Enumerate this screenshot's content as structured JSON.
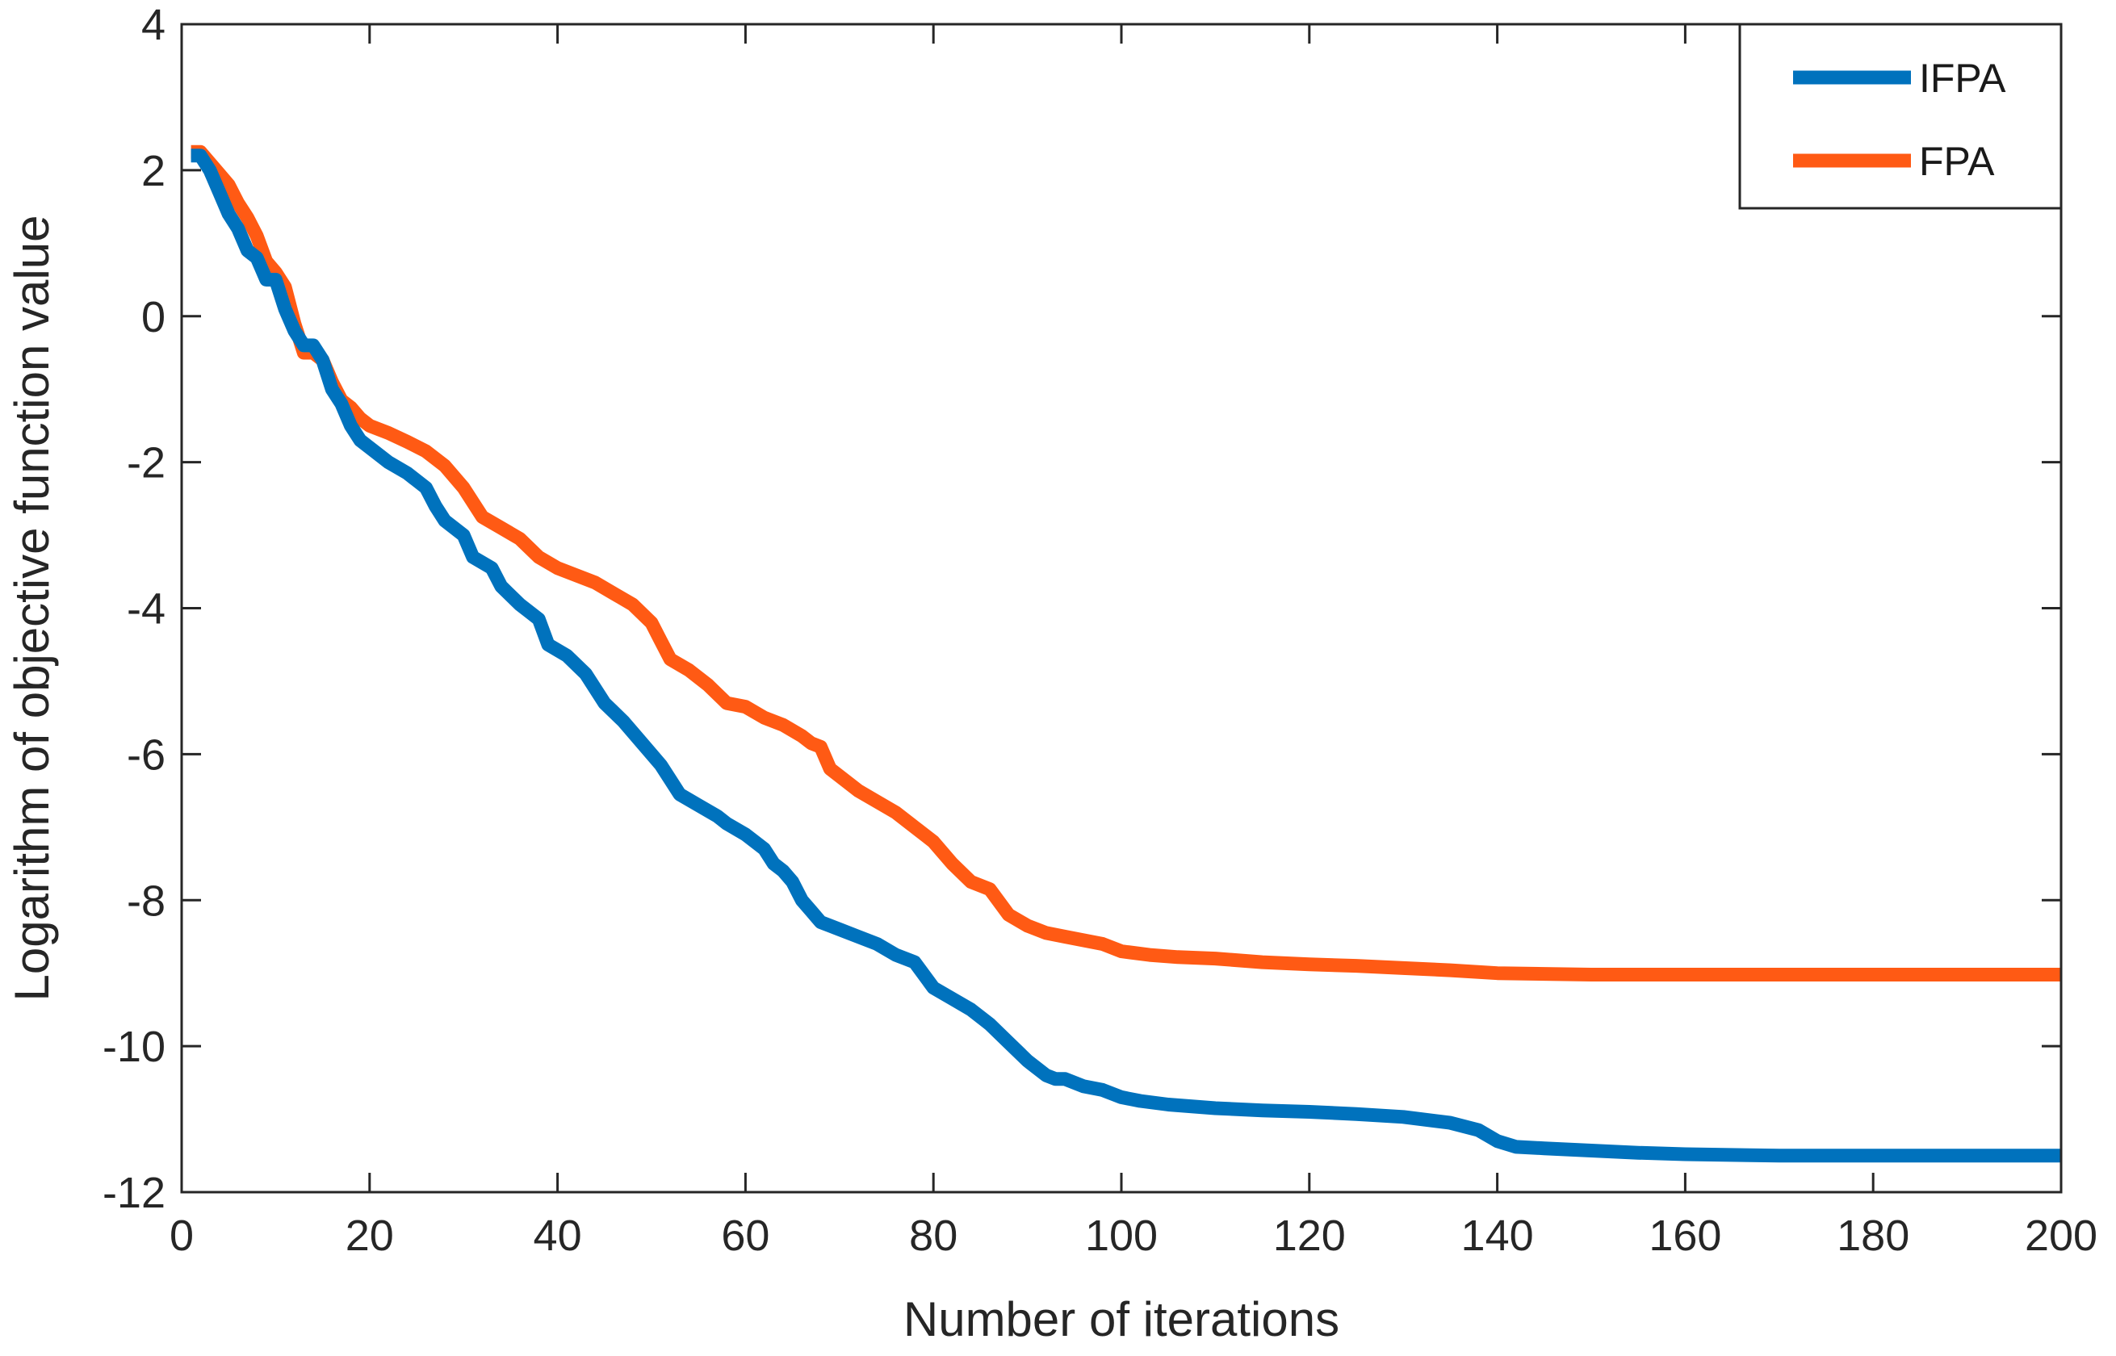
{
  "chart_data": {
    "type": "line",
    "title": "",
    "xlabel": "Number of iterations",
    "ylabel": "Logarithm of objective function value",
    "xlim": [
      0,
      200
    ],
    "ylim": [
      -12,
      4
    ],
    "xticks": [
      0,
      20,
      40,
      60,
      80,
      100,
      120,
      140,
      160,
      180,
      200
    ],
    "xtick_labels": [
      "0",
      "20",
      "40",
      "60",
      "80",
      "100",
      "120",
      "140",
      "160",
      "180",
      "200"
    ],
    "yticks": [
      4,
      2,
      0,
      -2,
      -4,
      -6,
      -8,
      -10,
      -12
    ],
    "ytick_labels": [
      "4",
      "2",
      "0",
      "-2",
      "-4",
      "-6",
      "-8",
      "-10",
      "-12"
    ],
    "grid": false,
    "legend_position": "top-right",
    "series": [
      {
        "name": "IFPA",
        "color": "#0072BD",
        "x": [
          1,
          2,
          3,
          4,
          5,
          6,
          7,
          8,
          9,
          10,
          11,
          12,
          13,
          14,
          15,
          16,
          17,
          18,
          19,
          20,
          22,
          24,
          26,
          27,
          28,
          30,
          31,
          33,
          34,
          36,
          38,
          39,
          41,
          43,
          45,
          47,
          49,
          51,
          52,
          53,
          55,
          57,
          58,
          60,
          62,
          63,
          64,
          65,
          66,
          67,
          68,
          69,
          70,
          72,
          74,
          76,
          78,
          80,
          82,
          84,
          86,
          88,
          90,
          92,
          93,
          94,
          96,
          98,
          100,
          102,
          105,
          110,
          115,
          120,
          125,
          130,
          135,
          138,
          140,
          142,
          145,
          150,
          155,
          160,
          170,
          180,
          190,
          200
        ],
        "y": [
          2.2,
          2.2,
          2.0,
          1.7,
          1.4,
          1.2,
          0.9,
          0.8,
          0.5,
          0.5,
          0.1,
          -0.2,
          -0.4,
          -0.4,
          -0.6,
          -1.0,
          -1.2,
          -1.5,
          -1.7,
          -1.8,
          -2.0,
          -2.15,
          -2.35,
          -2.6,
          -2.8,
          -3.0,
          -3.3,
          -3.45,
          -3.7,
          -3.95,
          -4.15,
          -4.5,
          -4.65,
          -4.9,
          -5.3,
          -5.55,
          -5.85,
          -6.15,
          -6.35,
          -6.55,
          -6.7,
          -6.85,
          -6.95,
          -7.1,
          -7.3,
          -7.5,
          -7.6,
          -7.75,
          -8.0,
          -8.15,
          -8.3,
          -8.35,
          -8.4,
          -8.5,
          -8.6,
          -8.75,
          -8.85,
          -9.2,
          -9.35,
          -9.5,
          -9.7,
          -9.95,
          -10.2,
          -10.4,
          -10.45,
          -10.45,
          -10.55,
          -10.6,
          -10.7,
          -10.75,
          -10.8,
          -10.85,
          -10.88,
          -10.9,
          -10.93,
          -10.97,
          -11.05,
          -11.15,
          -11.3,
          -11.38,
          -11.4,
          -11.43,
          -11.46,
          -11.48,
          -11.5,
          -11.5,
          -11.5,
          -11.5
        ]
      },
      {
        "name": "FPA",
        "color": "#FF5A14",
        "x": [
          1,
          2,
          3,
          4,
          5,
          6,
          7,
          8,
          9,
          10,
          11,
          12,
          13,
          14,
          15,
          16,
          17,
          18,
          19,
          20,
          22,
          24,
          26,
          28,
          30,
          32,
          34,
          36,
          38,
          40,
          42,
          44,
          46,
          48,
          50,
          51,
          52,
          54,
          56,
          58,
          60,
          62,
          64,
          66,
          67,
          68,
          69,
          70,
          72,
          74,
          76,
          78,
          80,
          82,
          84,
          86,
          88,
          90,
          92,
          94,
          96,
          98,
          100,
          103,
          106,
          110,
          115,
          120,
          125,
          130,
          135,
          140,
          150,
          160,
          170,
          180,
          190,
          200
        ],
        "y": [
          2.25,
          2.25,
          2.1,
          1.95,
          1.8,
          1.55,
          1.35,
          1.1,
          0.75,
          0.6,
          0.4,
          -0.1,
          -0.5,
          -0.5,
          -0.6,
          -0.9,
          -1.15,
          -1.25,
          -1.4,
          -1.5,
          -1.6,
          -1.72,
          -1.85,
          -2.05,
          -2.35,
          -2.75,
          -2.9,
          -3.05,
          -3.3,
          -3.45,
          -3.55,
          -3.65,
          -3.8,
          -3.95,
          -4.2,
          -4.45,
          -4.7,
          -4.85,
          -5.05,
          -5.3,
          -5.35,
          -5.5,
          -5.6,
          -5.75,
          -5.85,
          -5.9,
          -6.2,
          -6.3,
          -6.5,
          -6.65,
          -6.8,
          -7.0,
          -7.2,
          -7.5,
          -7.75,
          -7.85,
          -8.2,
          -8.35,
          -8.45,
          -8.5,
          -8.55,
          -8.6,
          -8.7,
          -8.75,
          -8.78,
          -8.8,
          -8.85,
          -8.88,
          -8.9,
          -8.93,
          -8.96,
          -9.0,
          -9.02,
          -9.02,
          -9.02,
          -9.02,
          -9.02,
          -9.02
        ]
      }
    ]
  }
}
